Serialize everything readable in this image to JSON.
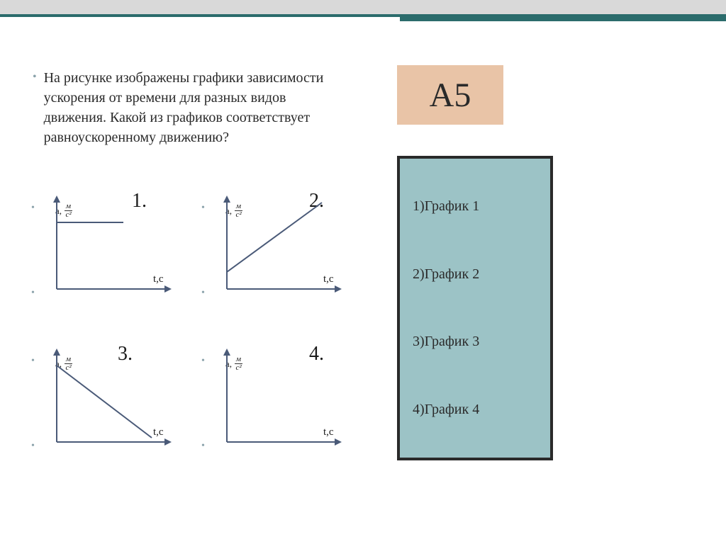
{
  "question": "На рисунке изображены  графики зависимости ускорения от времени для разных видов движения. Какой из графиков соответствует равноускоренному движению?",
  "badge": "А5",
  "answers": [
    "1)График 1",
    "2)График 2",
    "3)График 3",
    "4)График 4"
  ],
  "axis": {
    "y_label_prefix": "a,",
    "y_unit_num": "м",
    "y_unit_den": "с²",
    "x_label": "t,c"
  },
  "charts": [
    {
      "number": "1.",
      "type": "line",
      "points": [
        [
          16,
          40
        ],
        [
          110,
          40
        ]
      ],
      "number_x": 146
    },
    {
      "number": "2.",
      "type": "line",
      "points": [
        [
          16,
          110
        ],
        [
          150,
          12
        ]
      ],
      "number_x": 156
    },
    {
      "number": "3.",
      "type": "line",
      "points": [
        [
          16,
          26
        ],
        [
          150,
          128
        ]
      ],
      "number_x": 126
    },
    {
      "number": "4.",
      "type": "none",
      "points": [],
      "number_x": 156
    }
  ],
  "colors": {
    "stripe_bg": "#d9d9d9",
    "teal": "#2b6c6c",
    "badge_bg": "#e9c4a7",
    "answers_bg": "#9cc3c6",
    "axis": "#4a5a78",
    "bullet": "#8aa2aa"
  }
}
